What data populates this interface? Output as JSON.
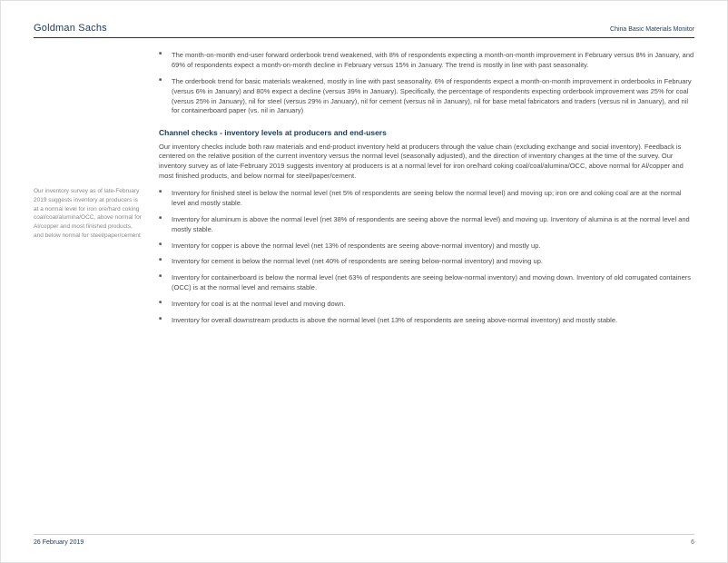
{
  "header": {
    "brand": "Goldman Sachs",
    "docTitle": "China Basic Materials Monitor"
  },
  "sidebar": {
    "note": "Our inventory survey as of late-February 2019 suggests inventory at producers is at a normal level for iron ore/hard coking coal/coal/alumina/OCC, above normal for Al/copper and most finished products, and below normal for steel/paper/cement"
  },
  "topBullets": [
    "The month-on-month end-user forward orderbook trend weakened, with 8% of respondents expecting a month-on-month improvement in February versus 8% in January, and 69% of respondents expect a month-on-month decline in February versus 15% in January. The trend is mostly in line with past seasonality.",
    "The orderbook trend for basic materials weakened, mostly in line with past seasonality. 6% of respondents expect a month-on-month improvement in orderbooks in February (versus 6% in January) and 80% expect a decline (versus 39% in January). Specifically, the percentage of respondents expecting orderbook improvement was 25% for coal (versus 25% in January), nil for steel (versus 29% in January), nil for cement (versus nil in January), nil for base metal fabricators and traders (versus nil in January), and nil for containerboard paper (vs. nil in January)"
  ],
  "section": {
    "heading": "Channel checks - inventory levels at producers and end-users",
    "intro": "Our inventory checks include both raw materials and end-product inventory held at producers through the value chain (excluding exchange and social inventory). Feedback is centered on the relative position of the current inventory versus the normal level (seasonally adjusted), and the direction of inventory changes at the time of the survey. Our inventory survey as of late-February 2019 suggests inventory at producers is at a normal level for iron ore/hard coking coal/coal/alumina/OCC, above normal for Al/copper and most finished products, and below normal for steel/paper/cement."
  },
  "invBullets": [
    "Inventory for finished steel is below the normal level (net 5% of respondents are seeing below the normal level) and moving up; iron ore and coking coal are at the normal level and mostly stable.",
    "Inventory for aluminum is above the normal level (net 38% of respondents are seeing above the normal level) and moving up. Inventory of alumina is at the normal level and mostly stable.",
    "Inventory for copper is above the normal level (net 13% of respondents are seeing above-normal inventory) and mostly up.",
    "Inventory for cement is below the normal level (net 40% of respondents are seeing below-normal inventory) and moving up.",
    "Inventory for containerboard is below the normal level (net 63% of respondents are seeing below-normal inventory) and moving down. Inventory of old corrugated containers (OCC) is at the normal level and remains stable.",
    "Inventory for coal is at the normal level and moving down.",
    "Inventory for overall downstream products is above the normal level (net 13% of respondents are seeing above-normal inventory) and mostly stable."
  ],
  "footer": {
    "date": "26 February 2019",
    "page": "6"
  },
  "colors": {
    "brand": "#1a3a5a",
    "bodyText": "#4a4a4a",
    "sideText": "#888888",
    "rule": "#1a3a5a",
    "footerRule": "#d0d0d0"
  }
}
